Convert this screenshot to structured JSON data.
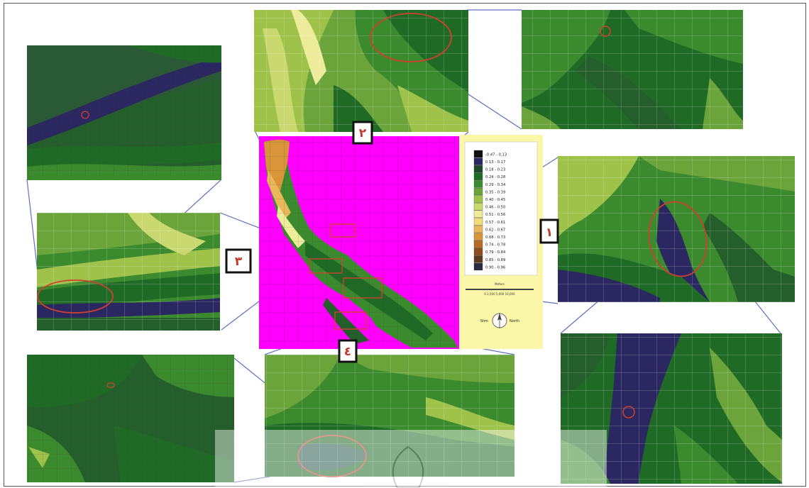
{
  "map_labels": {
    "badge_1": "١",
    "badge_2": "٢",
    "badge_3": "٣",
    "badge_4": "٤"
  },
  "legend": {
    "classes": [
      {
        "label": "-0.47 - 0.13",
        "color": "#101010"
      },
      {
        "label": "0.13 - 0.17",
        "color": "#2b2760"
      },
      {
        "label": "0.18 - 0.23",
        "color": "#1f4a2a"
      },
      {
        "label": "0.24 - 0.28",
        "color": "#1f6b26"
      },
      {
        "label": "0.29 - 0.34",
        "color": "#3c8a2e"
      },
      {
        "label": "0.35 - 0.39",
        "color": "#6aa43a"
      },
      {
        "label": "0.40 - 0.45",
        "color": "#9ec24a"
      },
      {
        "label": "0.46 - 0.50",
        "color": "#c9d970"
      },
      {
        "label": "0.51 - 0.56",
        "color": "#ecec9a"
      },
      {
        "label": "0.57 - 0.61",
        "color": "#f1dc7c"
      },
      {
        "label": "0.62 - 0.67",
        "color": "#e9b959"
      },
      {
        "label": "0.68 - 0.73",
        "color": "#d9953a"
      },
      {
        "label": "0.74 - 0.78",
        "color": "#b86c24"
      },
      {
        "label": "0.79 - 0.84",
        "color": "#8e4d1c"
      },
      {
        "label": "0.85 - 0.89",
        "color": "#5b3a1e"
      },
      {
        "label": "0.90 - 0.96",
        "color": "#2a2a40"
      }
    ],
    "scale_title": "Meters",
    "scale_sub": "0 2,500 5,000 10,000",
    "compass_left": "Shm",
    "compass_right": "North"
  },
  "colors": {
    "background_magenta": "#ff00ff",
    "legend_panel": "#fbf7a8",
    "callout_line": "#5d6fc0",
    "marker_red": "#d0402e"
  }
}
